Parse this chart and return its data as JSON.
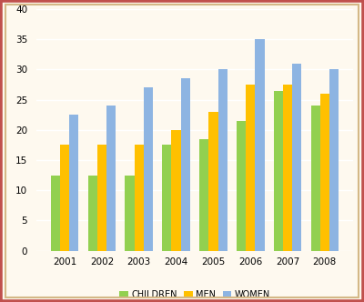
{
  "years": [
    "2001",
    "2002",
    "2003",
    "2004",
    "2005",
    "2006",
    "2007",
    "2008"
  ],
  "children": [
    12.5,
    12.5,
    12.5,
    17.5,
    18.5,
    21.5,
    26.5,
    24.0
  ],
  "men": [
    17.5,
    17.5,
    17.5,
    20.0,
    23.0,
    27.5,
    27.5,
    26.0
  ],
  "women": [
    22.5,
    24.0,
    27.0,
    28.5,
    30.0,
    35.0,
    31.0,
    30.0
  ],
  "children_color": "#92d050",
  "men_color": "#ffc000",
  "women_color": "#8db4e2",
  "ylim": [
    0,
    40
  ],
  "yticks": [
    0,
    5,
    10,
    15,
    20,
    25,
    30,
    35,
    40
  ],
  "legend_labels": [
    "CHILDREN",
    "MEN",
    "WOMEN"
  ],
  "outer_border_color": "#c0504d",
  "inner_border_color": "#d4b886",
  "background_color": "#fef9ef",
  "plot_bg_color": "#fef9ef",
  "grid_color": "#ffffff",
  "bar_width": 0.25
}
